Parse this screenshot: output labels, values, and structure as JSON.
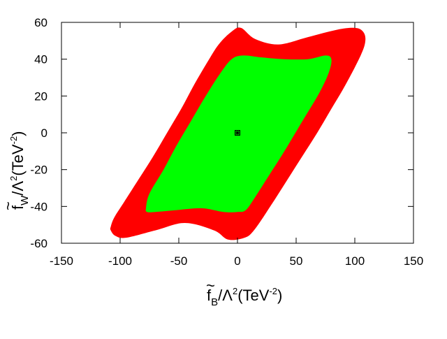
{
  "chart_data": {
    "type": "area",
    "title": "",
    "xlabel": {
      "tilde_letter": "f",
      "subscript": "B",
      "slash": "/",
      "lambda": "Λ",
      "power": "2",
      "unit_open": "(TeV",
      "unit_exp": "-2",
      "unit_close": ")"
    },
    "ylabel": {
      "tilde_letter": "f",
      "subscript": "W",
      "slash": "/",
      "lambda": "Λ",
      "power": "2",
      "unit_open": "(TeV",
      "unit_exp": "-2",
      "unit_close": ")"
    },
    "xlim": [
      -150,
      150
    ],
    "ylim": [
      -60,
      60
    ],
    "xticks": [
      -150,
      -100,
      -50,
      0,
      50,
      100,
      150
    ],
    "yticks": [
      -60,
      -40,
      -20,
      0,
      20,
      40,
      60
    ],
    "xtick_labels": [
      "-150",
      "-100",
      "-50",
      "0",
      "50",
      "100",
      "150"
    ],
    "ytick_labels": [
      "-60",
      "-40",
      "-20",
      "0",
      "20",
      "40",
      "60"
    ],
    "grid": false,
    "series": [
      {
        "color": "#ff0000",
        "region": "outer",
        "boundary": [
          [
            -108,
            -51
          ],
          [
            -105,
            -46
          ],
          [
            -97,
            -38
          ],
          [
            -85,
            -26
          ],
          [
            -72,
            -13
          ],
          [
            -60,
            0
          ],
          [
            -48,
            13
          ],
          [
            -37,
            26
          ],
          [
            -26,
            38
          ],
          [
            -16,
            48
          ],
          [
            -5,
            55
          ],
          [
            3,
            57
          ],
          [
            15,
            51
          ],
          [
            35,
            48
          ],
          [
            60,
            52
          ],
          [
            85,
            56
          ],
          [
            100,
            57
          ],
          [
            107,
            55
          ],
          [
            109,
            50
          ],
          [
            105,
            42
          ],
          [
            92,
            26
          ],
          [
            80,
            13
          ],
          [
            68,
            0
          ],
          [
            55,
            -13
          ],
          [
            42,
            -26
          ],
          [
            28,
            -40
          ],
          [
            14,
            -53
          ],
          [
            6,
            -57
          ],
          [
            -8,
            -58
          ],
          [
            -20,
            -53
          ],
          [
            -45,
            -49
          ],
          [
            -70,
            -53
          ],
          [
            -95,
            -57
          ],
          [
            -104,
            -56
          ],
          [
            -108,
            -53
          ]
        ]
      },
      {
        "color": "#00ff00",
        "region": "inner",
        "boundary": [
          [
            -78,
            -41
          ],
          [
            -75,
            -33
          ],
          [
            -63,
            -20
          ],
          [
            -52,
            -7
          ],
          [
            -40,
            6
          ],
          [
            -27,
            20
          ],
          [
            -15,
            32
          ],
          [
            -5,
            40
          ],
          [
            5,
            42
          ],
          [
            20,
            41
          ],
          [
            40,
            40
          ],
          [
            60,
            40
          ],
          [
            75,
            42
          ],
          [
            80,
            40
          ],
          [
            78,
            33
          ],
          [
            70,
            22
          ],
          [
            55,
            6
          ],
          [
            40,
            -10
          ],
          [
            27,
            -23
          ],
          [
            15,
            -35
          ],
          [
            7,
            -42
          ],
          [
            0,
            -43
          ],
          [
            -12,
            -43
          ],
          [
            -30,
            -41
          ],
          [
            -52,
            -42
          ],
          [
            -70,
            -43
          ],
          [
            -77,
            -43
          ]
        ]
      }
    ],
    "points": [
      {
        "x": 0,
        "y": 0,
        "marker": "star",
        "color": "#000000"
      }
    ]
  }
}
